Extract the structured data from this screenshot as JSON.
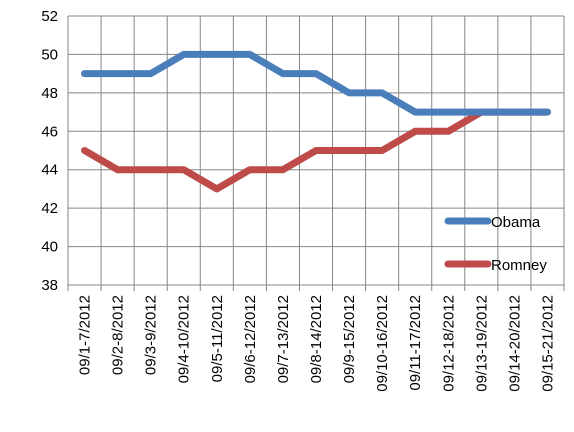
{
  "chart_data": {
    "type": "line",
    "title": "",
    "xlabel": "",
    "ylabel": "",
    "ylim": [
      38,
      52
    ],
    "ytick_step": 2,
    "grid": {
      "horizontal": true,
      "vertical": true
    },
    "legend_position": "right",
    "categories": [
      "09/1-7/2012",
      "09/2-8/2012",
      "09/3-9/2012",
      "09/4-10/2012",
      "09/5-11/2012",
      "09/6-12/2012",
      "09/7-13/2012",
      "09/8-14/2012",
      "09/9-15/2012",
      "09/10-16/2012",
      "09/11-17/2012",
      "09/12-18/2012",
      "09/13-19/2012",
      "09/14-20/2012",
      "09/15-21/2012"
    ],
    "series": [
      {
        "name": "Obama",
        "color": "#4a7ebb",
        "values": [
          49,
          49,
          49,
          50,
          50,
          50,
          49,
          49,
          48,
          48,
          47,
          47,
          47,
          47,
          47
        ]
      },
      {
        "name": "Romney",
        "color": "#be4b48",
        "values": [
          45,
          44,
          44,
          44,
          43,
          44,
          44,
          45,
          45,
          45,
          46,
          46,
          47,
          47,
          47
        ]
      }
    ]
  },
  "colors": {
    "grid": "#868686",
    "axis": "#868686"
  }
}
